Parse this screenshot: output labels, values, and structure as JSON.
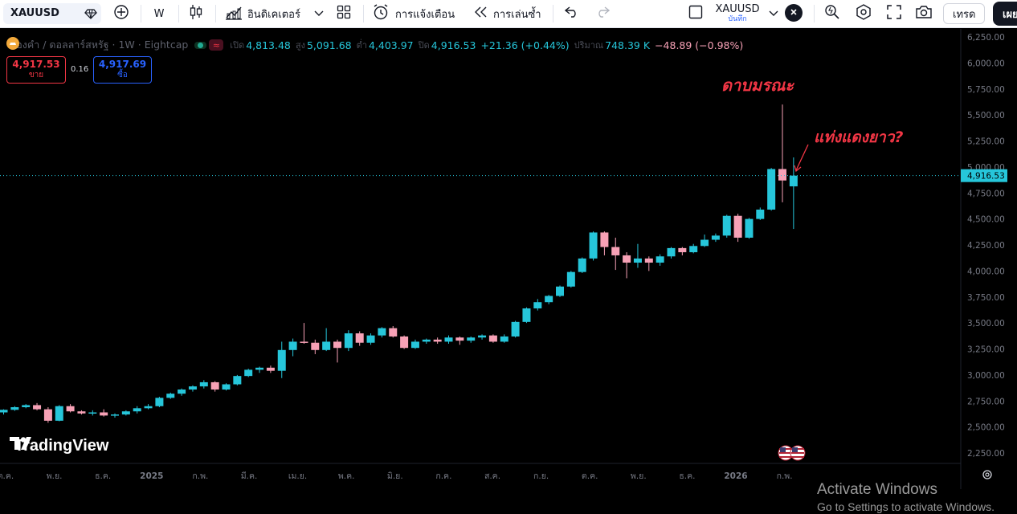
{
  "toolbar": {
    "symbol": "XAUUSD",
    "interval": "W",
    "indicators_label": "อินดิเคเตอร์",
    "alerts_label": "การแจ้งเตือน",
    "replay_label": "การเล่นซ้ำ",
    "layout_symbol": "XAUUSD",
    "layout_sub": "บันทึก",
    "trade_label": "เทรด",
    "publish_label": "เผย",
    "icons": [
      "diamond-icon",
      "plus-circle-icon",
      "candles-icon",
      "indicators-icon",
      "chevron-down-icon",
      "layouts-grid-icon",
      "alarm-icon",
      "replay-icon",
      "undo-icon",
      "redo-icon",
      "square-icon",
      "chevron-down-icon",
      "close-icon",
      "magnify-icon",
      "settings-icon",
      "fullscreen-icon",
      "camera-icon"
    ]
  },
  "legend": {
    "title": "ทองคำ / ดอลลาร์สหรัฐ · 1W · Eightcap",
    "open_label": "เปิด",
    "open": "4,813.48",
    "high_label": "สูง",
    "high": "5,091.68",
    "low_label": "ต่ำ",
    "low": "4,403.97",
    "close_label": "ปิด",
    "close": "4,916.53",
    "change": "+21.36 (+0.44%)",
    "volume_label": "ปริมาณ",
    "volume": "748.39 K",
    "volume_change": "−48.89 (−0.98%)"
  },
  "order": {
    "sell_price": "4,917.53",
    "sell_label": "ขาย",
    "spread": "0.16",
    "buy_price": "4,917.69",
    "buy_label": "ซื้อ"
  },
  "annotations": {
    "top": "ดาบมรณะ",
    "side": "แท่งแดงยาว?"
  },
  "price_axis": {
    "ticks": [
      "6,250.00",
      "6,000.00",
      "5,750.00",
      "5,500.00",
      "5,250.00",
      "5,000.00",
      "4,750.00",
      "4,500.00",
      "4,250.00",
      "4,000.00",
      "3,750.00",
      "3,500.00",
      "3,250.00",
      "3,000.00",
      "2,750.00",
      "2,500.00",
      "2,250.00"
    ],
    "current_price": "4,916.53"
  },
  "time_axis": {
    "labels": [
      "ต.ค.",
      "พ.ย.",
      "ธ.ค.",
      "2025",
      "ก.พ.",
      "มี.ค.",
      "เม.ย.",
      "พ.ค.",
      "มิ.ย.",
      "ก.ค.",
      "ส.ค.",
      "ก.ย.",
      "ต.ค.",
      "พ.ย.",
      "ธ.ค.",
      "2026",
      "ก.พ."
    ]
  },
  "watermark": "TradingView",
  "windows": {
    "line1": "Activate Windows",
    "line2": "Go to Settings to activate Windows."
  },
  "colors": {
    "up": "#26c6da",
    "down": "#f7a1b6",
    "sell": "#f23645",
    "buy": "#2962ff",
    "annotation": "#f23645"
  },
  "chart_data": {
    "type": "candlestick",
    "series": [
      {
        "name": "XAUUSD",
        "ohlc": [
          [
            2640,
            2670,
            2620,
            2665
          ],
          [
            2665,
            2700,
            2655,
            2690
          ],
          [
            2690,
            2720,
            2680,
            2710
          ],
          [
            2710,
            2730,
            2660,
            2670
          ],
          [
            2670,
            2690,
            2540,
            2560
          ],
          [
            2560,
            2710,
            2555,
            2700
          ],
          [
            2700,
            2720,
            2640,
            2650
          ],
          [
            2650,
            2660,
            2620,
            2630
          ],
          [
            2630,
            2660,
            2610,
            2640
          ],
          [
            2640,
            2670,
            2600,
            2610
          ],
          [
            2610,
            2630,
            2590,
            2620
          ],
          [
            2620,
            2660,
            2610,
            2650
          ],
          [
            2650,
            2700,
            2630,
            2680
          ],
          [
            2680,
            2720,
            2670,
            2700
          ],
          [
            2700,
            2790,
            2690,
            2780
          ],
          [
            2780,
            2830,
            2770,
            2820
          ],
          [
            2820,
            2870,
            2800,
            2860
          ],
          [
            2860,
            2900,
            2840,
            2890
          ],
          [
            2890,
            2950,
            2870,
            2930
          ],
          [
            2930,
            2940,
            2840,
            2860
          ],
          [
            2860,
            2920,
            2850,
            2910
          ],
          [
            2910,
            3000,
            2900,
            2990
          ],
          [
            2990,
            3060,
            2980,
            3050
          ],
          [
            3050,
            3080,
            3020,
            3070
          ],
          [
            3070,
            3090,
            3020,
            3040
          ],
          [
            3040,
            3320,
            2970,
            3240
          ],
          [
            3240,
            3350,
            3180,
            3320
          ],
          [
            3320,
            3500,
            3300,
            3310
          ],
          [
            3310,
            3340,
            3200,
            3240
          ],
          [
            3240,
            3450,
            3230,
            3320
          ],
          [
            3320,
            3340,
            3120,
            3260
          ],
          [
            3260,
            3430,
            3230,
            3400
          ],
          [
            3400,
            3420,
            3280,
            3310
          ],
          [
            3310,
            3400,
            3290,
            3380
          ],
          [
            3380,
            3460,
            3360,
            3450
          ],
          [
            3450,
            3470,
            3360,
            3370
          ],
          [
            3370,
            3380,
            3250,
            3260
          ],
          [
            3260,
            3340,
            3250,
            3320
          ],
          [
            3320,
            3350,
            3300,
            3340
          ],
          [
            3340,
            3360,
            3300,
            3320
          ],
          [
            3320,
            3380,
            3300,
            3360
          ],
          [
            3360,
            3370,
            3290,
            3330
          ],
          [
            3330,
            3370,
            3310,
            3360
          ],
          [
            3360,
            3390,
            3340,
            3380
          ],
          [
            3380,
            3390,
            3310,
            3320
          ],
          [
            3320,
            3390,
            3310,
            3370
          ],
          [
            3370,
            3520,
            3360,
            3510
          ],
          [
            3510,
            3650,
            3500,
            3640
          ],
          [
            3640,
            3730,
            3620,
            3700
          ],
          [
            3700,
            3770,
            3680,
            3760
          ],
          [
            3760,
            3860,
            3750,
            3850
          ],
          [
            3850,
            4000,
            3840,
            3990
          ],
          [
            3990,
            4130,
            3980,
            4120
          ],
          [
            4120,
            4380,
            4100,
            4370
          ],
          [
            4370,
            4380,
            4150,
            4230
          ],
          [
            4230,
            4320,
            4010,
            4150
          ],
          [
            4150,
            4180,
            3930,
            4080
          ],
          [
            4080,
            4260,
            4030,
            4120
          ],
          [
            4120,
            4140,
            4000,
            4080
          ],
          [
            4080,
            4160,
            4050,
            4140
          ],
          [
            4140,
            4230,
            4120,
            4220
          ],
          [
            4220,
            4230,
            4150,
            4180
          ],
          [
            4180,
            4260,
            4170,
            4240
          ],
          [
            4240,
            4350,
            4230,
            4300
          ],
          [
            4300,
            4360,
            4280,
            4340
          ],
          [
            4340,
            4540,
            4320,
            4530
          ],
          [
            4530,
            4550,
            4280,
            4320
          ],
          [
            4320,
            4510,
            4310,
            4500
          ],
          [
            4500,
            4610,
            4490,
            4590
          ],
          [
            4590,
            4990,
            4580,
            4980
          ],
          [
            4980,
            5600,
            4660,
            4870
          ],
          [
            4813.48,
            5091.68,
            4403.97,
            4916.53
          ]
        ]
      }
    ],
    "y_range": [
      2250,
      6250
    ],
    "last_price": 4916.53
  }
}
